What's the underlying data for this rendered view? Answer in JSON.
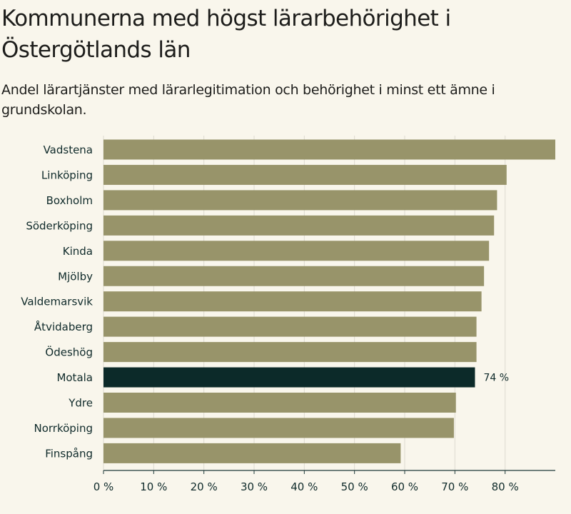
{
  "chart_data": {
    "type": "bar",
    "orientation": "horizontal",
    "title": "Kommunerna med högst lärarbehörighet i Östergötlands län",
    "subtitle": "Andel lärartjänster med lärarlegitimation och behörighet i minst ett ämne i grundskolan.",
    "categories": [
      "Vadstena",
      "Linköping",
      "Boxholm",
      "Söderköping",
      "Kinda",
      "Mjölby",
      "Valdemarsvik",
      "Åtvidaberg",
      "Ödeshög",
      "Motala",
      "Ydre",
      "Norrköping",
      "Finspång"
    ],
    "values": [
      90,
      80.3,
      78.4,
      77.8,
      76.8,
      75.8,
      75.3,
      74.3,
      74.3,
      74,
      70.2,
      69.8,
      59.2
    ],
    "highlight": {
      "category": "Motala",
      "label": "74 %"
    },
    "xlim": [
      0,
      90
    ],
    "xticks": [
      0,
      10,
      20,
      30,
      40,
      50,
      60,
      70,
      80
    ],
    "xtick_labels": [
      "0 %",
      "10 %",
      "20 %",
      "30 %",
      "40 %",
      "50 %",
      "60 %",
      "70 %",
      "80 %"
    ],
    "xlabel": "",
    "ylabel": "",
    "grid": true,
    "colors": {
      "bar": "#98946a",
      "highlight": "#0c2a29",
      "grid": "#dddad0",
      "axis": "#1f3a3a",
      "text": "#0f2a2a",
      "background": "#f9f6ec"
    }
  }
}
